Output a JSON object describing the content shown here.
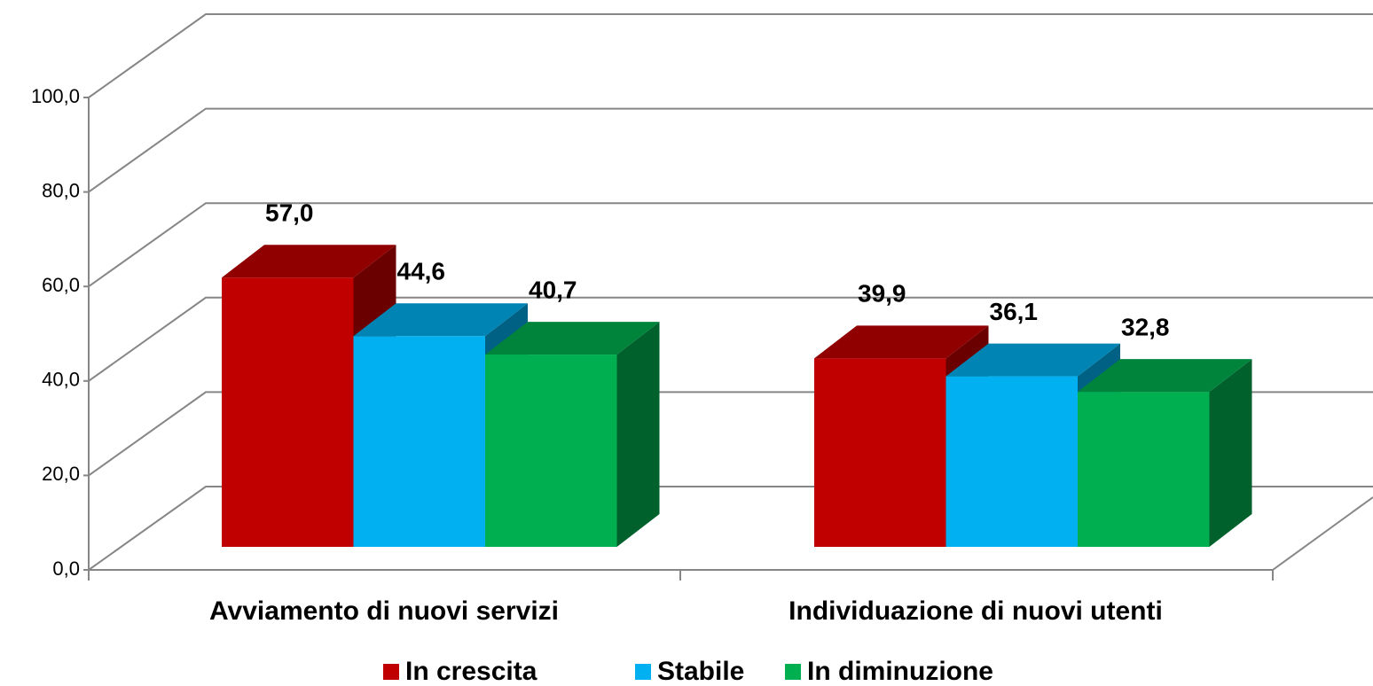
{
  "chart_data": {
    "type": "bar3d",
    "categories": [
      "Avviamento di nuovi servizi",
      "Individuazione di nuovi utenti"
    ],
    "series": [
      {
        "name": "In crescita",
        "color": "#c00000",
        "values": [
          57.0,
          39.9
        ],
        "value_labels": [
          "57,0",
          "39,9"
        ]
      },
      {
        "name": "Stabile",
        "color": "#00b0f0",
        "values": [
          44.6,
          36.1
        ],
        "value_labels": [
          "44,6",
          "36,1"
        ]
      },
      {
        "name": "In diminuzione",
        "color": "#00b050",
        "values": [
          40.7,
          32.8
        ],
        "value_labels": [
          "40,7",
          "32,8"
        ]
      }
    ],
    "ylim": [
      0,
      100
    ],
    "yticks": [
      {
        "value": 0,
        "label": "0,0"
      },
      {
        "value": 20,
        "label": "20,0"
      },
      {
        "value": 40,
        "label": "40,0"
      },
      {
        "value": 60,
        "label": "60,0"
      },
      {
        "value": 80,
        "label": "80,0"
      },
      {
        "value": 100,
        "label": "100,0"
      }
    ],
    "grid": true,
    "legend": "bottom"
  }
}
